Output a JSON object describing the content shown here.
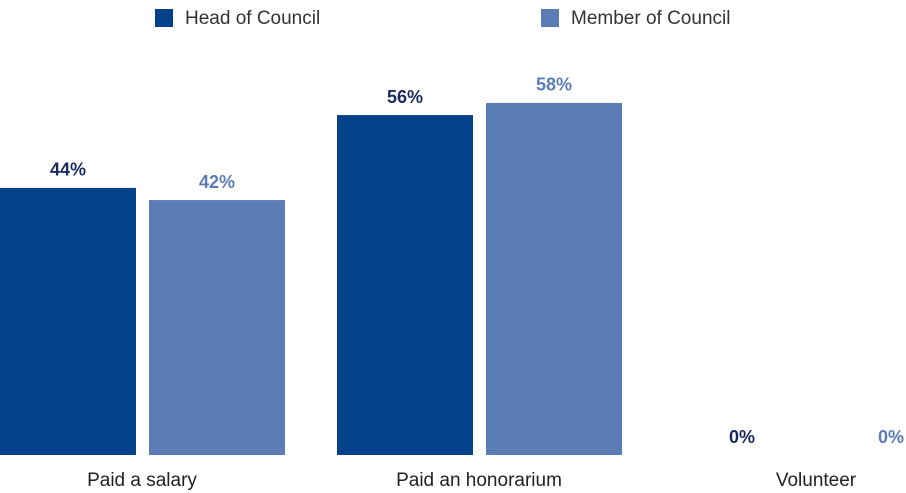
{
  "chart_data": {
    "type": "bar",
    "categories": [
      "Paid a salary",
      "Paid an honorarium",
      "Volunteer"
    ],
    "series": [
      {
        "name": "Head of Council",
        "color": "#03428a",
        "label_color": "#1b2a5e",
        "values": [
          44,
          56,
          0
        ],
        "value_labels": [
          "44%",
          "56%",
          "0%"
        ]
      },
      {
        "name": "Member of Council",
        "color": "#5b7db6",
        "label_color": "#5b7db6",
        "values": [
          42,
          58,
          0
        ],
        "value_labels": [
          "42%",
          "58%",
          "0%"
        ]
      }
    ]
  }
}
